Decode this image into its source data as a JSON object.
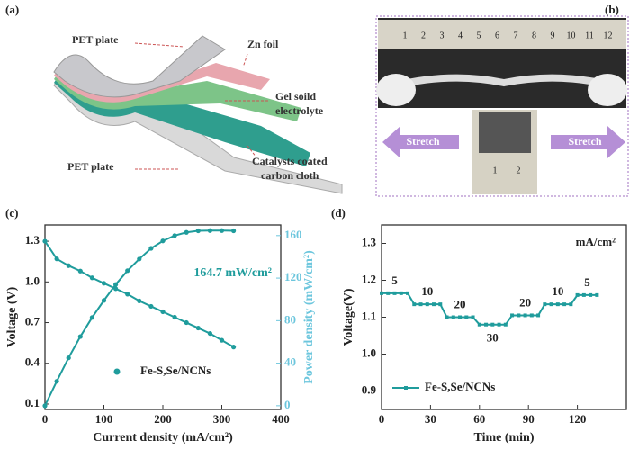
{
  "panel_labels": [
    "(a)",
    "(b)",
    "(c)",
    "(d)"
  ],
  "panel_a": {
    "labels": [
      "PET plate",
      "Zn foil",
      "Gel soild",
      "electrolyte",
      "PET plate",
      "Catalysts coated",
      "carbon cloth"
    ]
  },
  "panel_b": {
    "ruler_top": [
      "1",
      "2",
      "3",
      "4",
      "5",
      "6",
      "7",
      "8",
      "9",
      "10",
      "11",
      "12"
    ],
    "ruler_small": [
      "1",
      "2"
    ],
    "arrow_left": "Stretch",
    "arrow_right": "Stretch"
  },
  "chart_data": [
    {
      "type": "line",
      "xlabel": "Current density (mA/cm²)",
      "ylabel": "Voltage (V)",
      "y2label": "Power density (mW/cm²)",
      "annotation": "164.7 mW/cm²",
      "x": [
        0,
        20,
        40,
        60,
        80,
        100,
        120,
        140,
        160,
        180,
        200,
        220,
        240,
        260,
        280,
        300,
        320
      ],
      "series": [
        {
          "name": "Fe-S,Se/NCNs",
          "color": "#1f9c9c",
          "values": [
            1.3,
            1.17,
            1.12,
            1.08,
            1.03,
            0.99,
            0.95,
            0.91,
            0.86,
            0.82,
            0.78,
            0.74,
            0.7,
            0.66,
            0.62,
            0.57,
            0.52
          ]
        },
        {
          "color": "#1f9c9c",
          "axis": "y2",
          "values": [
            0,
            23,
            45,
            65,
            83,
            99,
            114,
            127,
            138,
            148,
            155,
            160,
            163,
            164.5,
            164.7,
            164.7,
            164.5
          ]
        }
      ],
      "xlim": [
        0,
        400
      ],
      "xticks": [
        0,
        100,
        200,
        300,
        400
      ],
      "ylim": [
        0.06,
        1.42
      ],
      "yticks": [
        0.1,
        0.4,
        0.7,
        {
          "value": 1.0,
          "label": "1.0"
        },
        1.3
      ],
      "y2lim": [
        -3.5,
        170
      ],
      "y2ticks": [
        0,
        40,
        80,
        120,
        160
      ],
      "y2color": "#6cc6dd",
      "legend": "lower left"
    },
    {
      "type": "step",
      "xlabel": "Time (min)",
      "ylabel": "Voltage(V)",
      "annotation": "mA/cm²",
      "steps": [
        5,
        10,
        20,
        30,
        20,
        10,
        5
      ],
      "x": [
        0,
        4,
        8,
        12,
        16,
        20,
        24,
        28,
        32,
        36,
        40,
        44,
        48,
        52,
        56,
        60,
        64,
        68,
        72,
        76,
        80,
        84,
        88,
        92,
        96,
        100,
        104,
        108,
        112,
        116,
        120,
        124,
        128,
        132
      ],
      "series": [
        {
          "name": "Fe-S,Se/NCNs",
          "color": "#1f9c9c",
          "values": [
            1.165,
            1.165,
            1.165,
            1.165,
            1.165,
            1.135,
            1.135,
            1.135,
            1.135,
            1.135,
            1.1,
            1.1,
            1.1,
            1.1,
            1.1,
            1.08,
            1.08,
            1.08,
            1.08,
            1.08,
            1.105,
            1.105,
            1.105,
            1.105,
            1.105,
            1.135,
            1.135,
            1.135,
            1.135,
            1.135,
            1.16,
            1.16,
            1.16,
            1.16
          ]
        }
      ],
      "xlim": [
        0,
        150
      ],
      "xticks": [
        0,
        30,
        60,
        90,
        120
      ],
      "ylim": [
        0.85,
        1.35
      ],
      "yticks": [
        0.9,
        {
          "value": 1.0,
          "label": "1.0"
        },
        1.1,
        1.2,
        1.3
      ],
      "legend": "lower left"
    }
  ]
}
